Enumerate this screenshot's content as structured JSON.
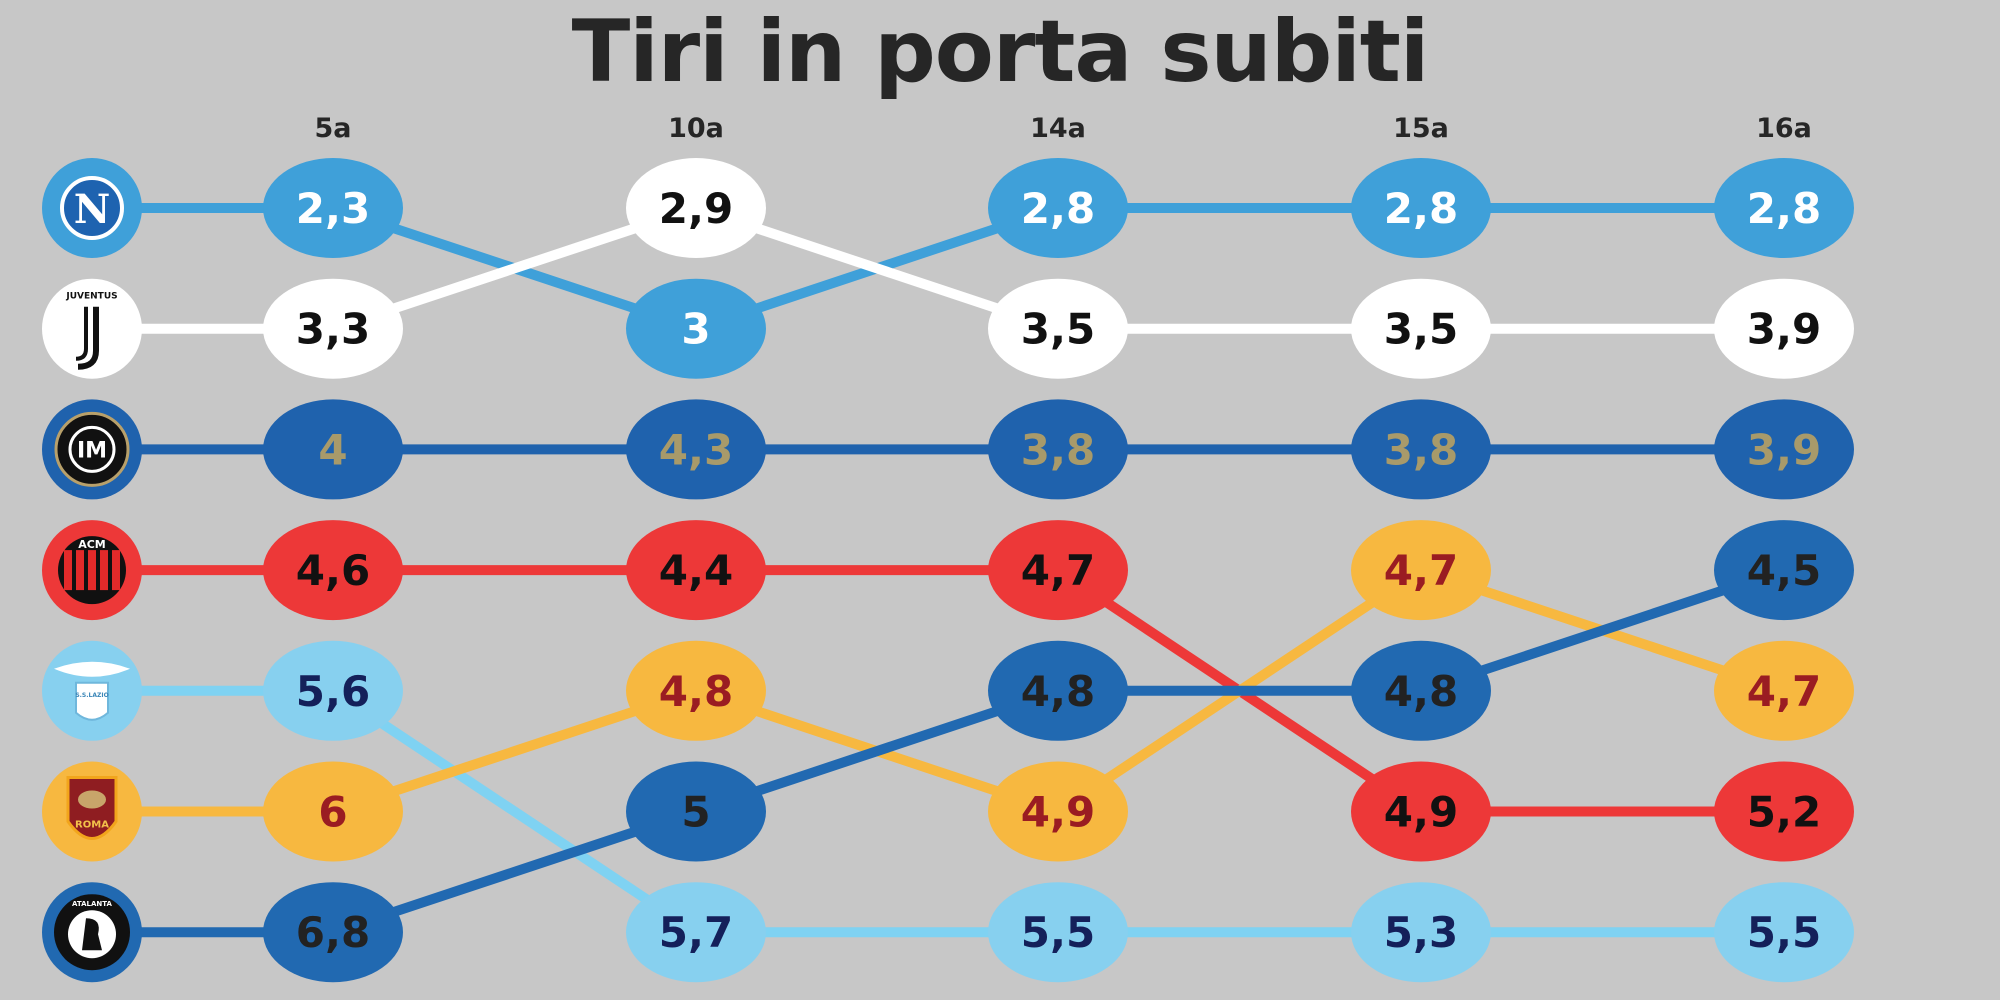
{
  "chart_data": {
    "type": "line",
    "title": "Tiri in porta subiti",
    "categories": [
      "5a",
      "10a",
      "14a",
      "15a",
      "16a"
    ],
    "series": [
      {
        "team": "Napoli",
        "logo": "napoli-logo-icon",
        "logo_text": "N",
        "color": "#3fa0d9",
        "text_color": "#ffffff",
        "line_color": "#3fa0d9",
        "values": [
          2.3,
          3,
          2.8,
          2.8,
          2.8
        ],
        "labels": [
          "2,3",
          "3",
          "2,8",
          "2,8",
          "2,8"
        ],
        "ranks": [
          1,
          2,
          1,
          1,
          1
        ]
      },
      {
        "team": "Juventus",
        "logo": "juventus-logo-icon",
        "logo_text": "JUVENTUS",
        "color": "#ffffff",
        "text_color": "#111111",
        "line_color": "#ffffff",
        "values": [
          3.3,
          2.9,
          3.5,
          3.5,
          3.9
        ],
        "labels": [
          "3,3",
          "2,9",
          "3,5",
          "3,5",
          "3,9"
        ],
        "ranks": [
          2,
          1,
          2,
          2,
          2
        ]
      },
      {
        "team": "Inter",
        "logo": "inter-logo-icon",
        "logo_text": "IM",
        "color": "#1f62ad",
        "text_color": "#a89a6a",
        "line_color": "#1f62ad",
        "values": [
          4,
          4.3,
          3.8,
          3.8,
          3.9
        ],
        "labels": [
          "4",
          "4,3",
          "3,8",
          "3,8",
          "3,9"
        ],
        "ranks": [
          3,
          3,
          3,
          3,
          3
        ]
      },
      {
        "team": "Milan",
        "logo": "milan-logo-icon",
        "logo_text": "ACM",
        "color": "#ed3838",
        "text_color": "#111111",
        "line_color": "#ed3838",
        "values": [
          4.6,
          4.4,
          4.7,
          4.9,
          5.2
        ],
        "labels": [
          "4,6",
          "4,4",
          "4,7",
          "4,9",
          "5,2"
        ],
        "ranks": [
          4,
          4,
          4,
          6,
          6
        ]
      },
      {
        "team": "Lazio",
        "logo": "lazio-logo-icon",
        "logo_text": "S.S.LAZIO",
        "color": "#87d0ef",
        "text_color": "#14205a",
        "line_color": "#7fd2f2",
        "values": [
          5.6,
          5.7,
          5.5,
          5.3,
          5.5
        ],
        "labels": [
          "5,6",
          "5,7",
          "5,5",
          "5,3",
          "5,5"
        ],
        "ranks": [
          5,
          7,
          7,
          7,
          7
        ]
      },
      {
        "team": "Roma",
        "logo": "roma-logo-icon",
        "logo_text": "ROMA",
        "color": "#f7b840",
        "text_color": "#9a1c22",
        "line_color": "#f7b840",
        "values": [
          6,
          4.8,
          4.9,
          4.7,
          4.7
        ],
        "labels": [
          "6",
          "4,8",
          "4,9",
          "4,7",
          "4,7"
        ],
        "ranks": [
          6,
          5,
          6,
          4,
          5
        ]
      },
      {
        "team": "Atalanta",
        "logo": "atalanta-logo-icon",
        "logo_text": "ATALANTA",
        "color": "#2169b1",
        "text_color": "#222222",
        "line_color": "#2169b1",
        "values": [
          6.8,
          5,
          4.8,
          4.8,
          4.5
        ],
        "labels": [
          "6,8",
          "5",
          "4,8",
          "4,8",
          "4,5"
        ],
        "ranks": [
          7,
          6,
          5,
          5,
          4
        ]
      }
    ]
  }
}
